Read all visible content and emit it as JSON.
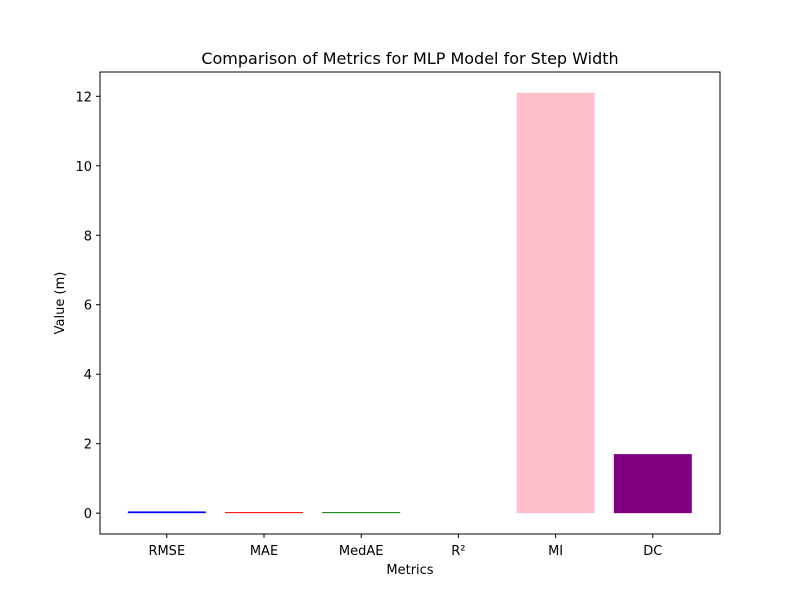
{
  "chart_data": {
    "type": "bar",
    "title": "Comparison of Metrics for MLP Model for Step Width",
    "xlabel": "Metrics",
    "ylabel": "Value (m)",
    "categories": [
      "RMSE",
      "MAE",
      "MedAE",
      "R²",
      "MI",
      "DC"
    ],
    "values": [
      0.05,
      0.03,
      0.03,
      0.0,
      12.1,
      1.7
    ],
    "colors": [
      "#0000ff",
      "#ff0000",
      "#008000",
      "#ffa500",
      "#ffc0cb",
      "#800080"
    ],
    "ylim": [
      -0.6,
      12.7
    ],
    "yticks": [
      0,
      2,
      4,
      6,
      8,
      10,
      12
    ],
    "grid": false,
    "legend": "none"
  }
}
